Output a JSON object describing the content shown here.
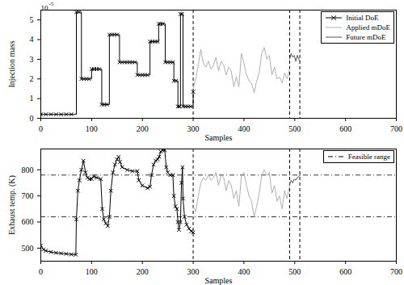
{
  "chart_data": [
    {
      "type": "line",
      "xlabel": "Samples",
      "ylabel": "Injection mass",
      "annotations": [
        {
          "text": "10",
          "superscript": "-5"
        }
      ],
      "xlim": [
        0,
        700
      ],
      "xticks": [
        0,
        100,
        200,
        300,
        400,
        500,
        600,
        700
      ],
      "ylim": [
        0,
        5.5e-05
      ],
      "yticks": [
        {
          "value": 0,
          "label": "0"
        },
        {
          "value": 1e-05,
          "label": "1"
        },
        {
          "value": 2e-05,
          "label": "2"
        },
        {
          "value": 3e-05,
          "label": "3"
        },
        {
          "value": 4e-05,
          "label": "4"
        },
        {
          "value": 5e-05,
          "label": "5"
        }
      ],
      "grid": false,
      "legend": "top-right",
      "vlines": {
        "values": [
          300,
          490,
          510
        ],
        "line_style": "dashed",
        "color": "#000000"
      },
      "series": [
        {
          "name": "Initial DoE",
          "color": "#000000",
          "marker": "x",
          "line_style": "step",
          "x": [
            0,
            10,
            20,
            30,
            40,
            50,
            60,
            70,
            75,
            80,
            85,
            90,
            95,
            100,
            105,
            110,
            115,
            120,
            125,
            130,
            135,
            140,
            145,
            150,
            155,
            160,
            165,
            170,
            175,
            180,
            185,
            190,
            195,
            200,
            205,
            210,
            215,
            220,
            225,
            230,
            232,
            236,
            240,
            245,
            250,
            255,
            260,
            262,
            266,
            270,
            273,
            275,
            278,
            280,
            285,
            290,
            295,
            300
          ],
          "values": [
            2e-06,
            2e-06,
            2e-06,
            2e-06,
            2e-06,
            2e-06,
            2e-06,
            5.4e-05,
            5.4e-05,
            2e-05,
            2e-05,
            2e-05,
            2e-05,
            2.5e-05,
            2.5e-05,
            2.5e-05,
            2.5e-05,
            7e-06,
            7e-06,
            7e-06,
            4.25e-05,
            4.25e-05,
            4.25e-05,
            4.25e-05,
            2.85e-05,
            2.85e-05,
            2.85e-05,
            2.85e-05,
            2.85e-05,
            2.85e-05,
            2.85e-05,
            2.2e-05,
            2.2e-05,
            2.2e-05,
            2.2e-05,
            2.2e-05,
            3.9e-05,
            3.9e-05,
            3.9e-05,
            3.9e-05,
            4.8e-05,
            4.8e-05,
            4.8e-05,
            2.85e-05,
            2.85e-05,
            2.85e-05,
            2.85e-05,
            1.9e-05,
            1.9e-05,
            6e-06,
            6e-06,
            5.3e-05,
            5.3e-05,
            6e-06,
            6e-06,
            6e-06,
            6e-06,
            1.35e-05
          ]
        },
        {
          "name": "Applied mDoE",
          "color": "#b0b0b0",
          "line_style": "solid",
          "x": [
            300,
            305,
            310,
            315,
            320,
            325,
            330,
            335,
            340,
            345,
            350,
            355,
            360,
            365,
            370,
            375,
            380,
            385,
            390,
            395,
            400,
            405,
            410,
            415,
            420,
            425,
            430,
            435,
            440,
            445,
            450,
            455,
            460,
            465,
            470,
            475,
            480,
            485,
            490
          ],
          "values": [
            1.5e-05,
            2e-05,
            2.7e-05,
            3.5e-05,
            2.8e-05,
            2.6e-05,
            2.9e-05,
            2.5e-05,
            2.7e-05,
            3.1e-05,
            2.4e-05,
            2.9e-05,
            2.7e-05,
            2.2e-05,
            2.6e-05,
            2.4e-05,
            1.6e-05,
            2.1e-05,
            1.6e-05,
            3.3e-05,
            2.8e-05,
            2.2e-05,
            1.9e-05,
            1.8e-05,
            1.3e-05,
            1.9e-05,
            2.3e-05,
            3.3e-05,
            3.6e-05,
            3e-05,
            3.2e-05,
            2.2e-05,
            2.6e-05,
            2e-05,
            2.1e-05,
            1.8e-05,
            2.3e-05,
            2e-05,
            2.5e-05
          ]
        },
        {
          "name": "Future mDoE",
          "color": "#555555",
          "line_style": "solid",
          "x": [
            490,
            493,
            496,
            499,
            502,
            505,
            508,
            510
          ],
          "values": [
            3e-05,
            3.3e-05,
            3.1e-05,
            3.2e-05,
            2.9e-05,
            3.2e-05,
            3e-05,
            2.9e-05
          ]
        }
      ]
    },
    {
      "type": "line",
      "xlabel": "Samples",
      "ylabel": "Exhaust temp. (K)",
      "xlim": [
        0,
        700
      ],
      "xticks": [
        0,
        100,
        200,
        300,
        400,
        500,
        600,
        700
      ],
      "ylim": [
        450,
        880
      ],
      "yticks": [
        500,
        600,
        700,
        800
      ],
      "grid": false,
      "legend": "top-right",
      "vlines": {
        "values": [
          300,
          490,
          510
        ],
        "line_style": "dashed",
        "color": "#000000"
      },
      "reference_lines": {
        "name": "Feasible range",
        "values": [
          620,
          780
        ],
        "line_style": "dashdot",
        "color": "#000000"
      },
      "series": [
        {
          "color": "#000000",
          "marker": "x",
          "line_style": "solid",
          "x": [
            0,
            5,
            10,
            20,
            30,
            40,
            50,
            60,
            69,
            70,
            73,
            76,
            80,
            84,
            88,
            92,
            96,
            100,
            104,
            110,
            118,
            121,
            124,
            128,
            132,
            135,
            138,
            142,
            146,
            150,
            153,
            156,
            160,
            170,
            180,
            190,
            193,
            200,
            210,
            215,
            218,
            222,
            226,
            230,
            233,
            236,
            240,
            244,
            247,
            250,
            255,
            260,
            262,
            265,
            268,
            270,
            272,
            275,
            277,
            279,
            280,
            283,
            287,
            292,
            296,
            300
          ],
          "values": [
            510,
            495,
            490,
            485,
            482,
            480,
            478,
            476,
            475,
            610,
            720,
            760,
            800,
            835,
            790,
            770,
            765,
            765,
            775,
            770,
            765,
            650,
            610,
            595,
            585,
            620,
            720,
            790,
            820,
            840,
            850,
            830,
            810,
            800,
            795,
            795,
            760,
            740,
            730,
            735,
            780,
            820,
            835,
            840,
            850,
            870,
            875,
            875,
            810,
            790,
            780,
            780,
            700,
            660,
            650,
            600,
            570,
            600,
            750,
            810,
            690,
            620,
            590,
            575,
            565,
            560
          ]
        },
        {
          "color": "#b0b0b0",
          "line_style": "solid",
          "x": [
            300,
            305,
            310,
            315,
            320,
            325,
            330,
            335,
            340,
            345,
            350,
            355,
            360,
            365,
            370,
            375,
            380,
            385,
            390,
            395,
            400,
            405,
            410,
            415,
            420,
            425,
            430,
            435,
            440,
            445,
            450,
            455,
            460,
            465,
            470,
            475,
            480,
            485,
            490
          ],
          "values": [
            660,
            640,
            700,
            750,
            770,
            760,
            780,
            760,
            770,
            790,
            740,
            780,
            770,
            720,
            760,
            740,
            690,
            720,
            660,
            780,
            790,
            740,
            700,
            680,
            620,
            660,
            710,
            780,
            800,
            780,
            790,
            710,
            740,
            680,
            700,
            650,
            720,
            690,
            740
          ]
        },
        {
          "color": "#555555",
          "line_style": "solid",
          "x": [
            490,
            493,
            496,
            499,
            502,
            505,
            508,
            510
          ],
          "values": [
            745,
            760,
            750,
            765,
            760,
            770,
            775,
            780
          ]
        }
      ]
    }
  ]
}
